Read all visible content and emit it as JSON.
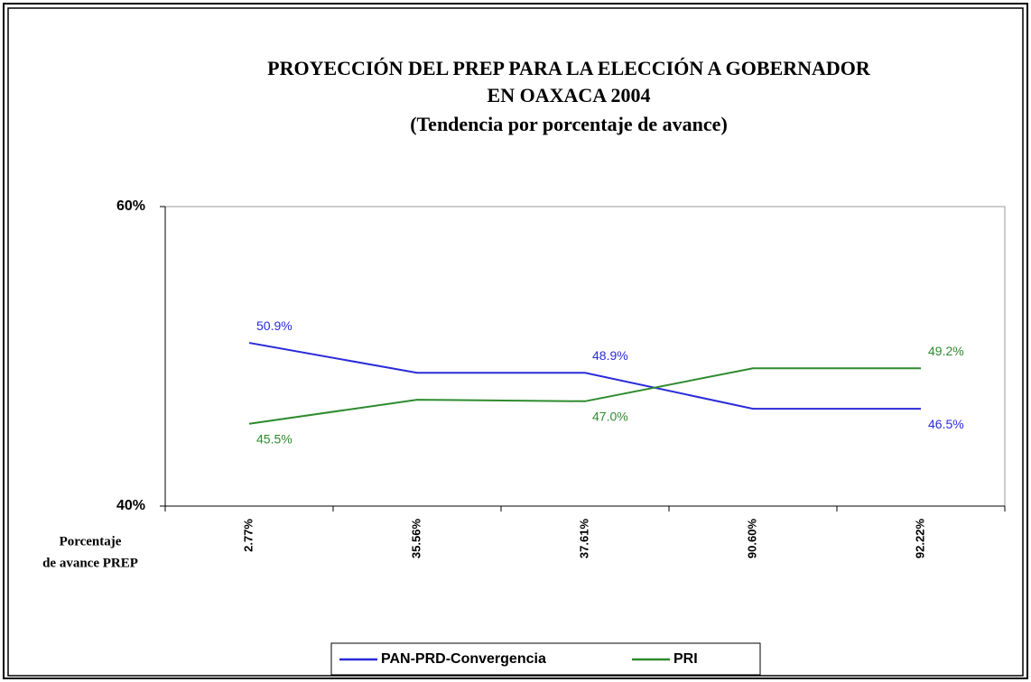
{
  "chart_data": {
    "type": "line",
    "title": [
      "PROYECCIÓN DEL PREP PARA LA ELECCIÓN A GOBERNADOR",
      "EN OAXACA 2004"
    ],
    "subtitle": "(Tendencia por porcentaje de avance)",
    "x_label": [
      "Porcentaje",
      "de avance PREP"
    ],
    "categories": [
      "2.77%",
      "35.56%",
      "37.61%",
      "90.60%",
      "92.22%"
    ],
    "series": [
      {
        "name": "PAN-PRD-Convergencia",
        "color": "#2b2bd9",
        "values": [
          50.9,
          48.9,
          48.9,
          46.5,
          46.5
        ],
        "value_labels": [
          "50.9%",
          null,
          "48.9%",
          null,
          "46.5%"
        ]
      },
      {
        "name": "PRI",
        "color": "#2e8b2e",
        "values": [
          45.5,
          47.1,
          47.0,
          49.2,
          49.2
        ],
        "value_labels": [
          "45.5%",
          null,
          "47.0%",
          null,
          "49.2%"
        ]
      }
    ],
    "ylim": [
      40,
      60
    ],
    "yticks": [
      {
        "value": 40,
        "label": "40%"
      },
      {
        "value": 60,
        "label": "60%"
      }
    ],
    "legend": "bottom"
  }
}
